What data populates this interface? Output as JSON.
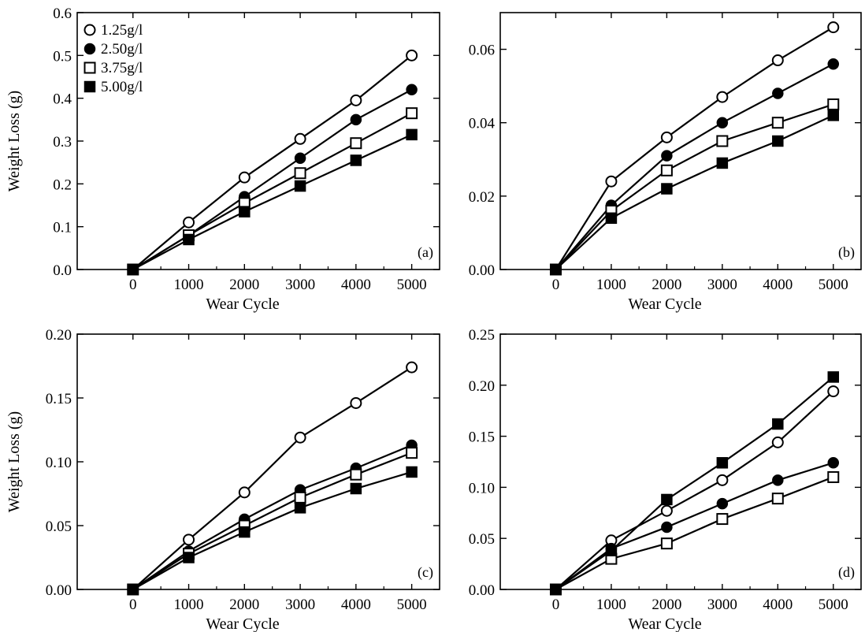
{
  "chart_data": [
    {
      "type": "line",
      "panel_label": "(a)",
      "xlabel": "Wear Cycle",
      "ylabel": "Weight Loss (g)",
      "x": [
        0,
        1000,
        2000,
        3000,
        4000,
        5000
      ],
      "x_ticks": [
        "0",
        "1000",
        "2000",
        "3000",
        "4000",
        "5000"
      ],
      "xlim": [
        -1000,
        5500
      ],
      "ylim": [
        0,
        0.6
      ],
      "y_ticks": [
        "0.0",
        "0.1",
        "0.2",
        "0.3",
        "0.4",
        "0.5",
        "0.6"
      ],
      "grid": false,
      "legend_position": "top-left",
      "series": [
        {
          "name": "1.25g/l",
          "marker": "open-circle",
          "values": [
            0,
            0.11,
            0.215,
            0.305,
            0.395,
            0.5
          ]
        },
        {
          "name": "2.50g/l",
          "marker": "filled-circle",
          "values": [
            0,
            0.08,
            0.17,
            0.26,
            0.35,
            0.42
          ]
        },
        {
          "name": "3.75g/l",
          "marker": "open-square",
          "values": [
            0,
            0.08,
            0.155,
            0.225,
            0.295,
            0.365
          ]
        },
        {
          "name": "5.00g/l",
          "marker": "filled-square",
          "values": [
            0,
            0.07,
            0.135,
            0.195,
            0.255,
            0.315
          ]
        }
      ]
    },
    {
      "type": "line",
      "panel_label": "(b)",
      "xlabel": "Wear Cycle",
      "ylabel": "",
      "x": [
        0,
        1000,
        2000,
        3000,
        4000,
        5000
      ],
      "x_ticks": [
        "0",
        "1000",
        "2000",
        "3000",
        "4000",
        "5000"
      ],
      "xlim": [
        -1000,
        5500
      ],
      "ylim": [
        0,
        0.07
      ],
      "y_ticks": [
        "0.00",
        "0.02",
        "0.04",
        "0.06"
      ],
      "grid": false,
      "series": [
        {
          "name": "1.25g/l",
          "marker": "open-circle",
          "values": [
            0,
            0.024,
            0.036,
            0.047,
            0.057,
            0.066
          ]
        },
        {
          "name": "2.50g/l",
          "marker": "filled-circle",
          "values": [
            0,
            0.0175,
            0.031,
            0.04,
            0.048,
            0.056
          ]
        },
        {
          "name": "3.75g/l",
          "marker": "open-square",
          "values": [
            0,
            0.016,
            0.027,
            0.035,
            0.04,
            0.045
          ]
        },
        {
          "name": "5.00g/l",
          "marker": "filled-square",
          "values": [
            0,
            0.014,
            0.022,
            0.029,
            0.035,
            0.042
          ]
        }
      ]
    },
    {
      "type": "line",
      "panel_label": "(c)",
      "xlabel": "Wear Cycle",
      "ylabel": "Weight Loss (g)",
      "x": [
        0,
        1000,
        2000,
        3000,
        4000,
        5000
      ],
      "x_ticks": [
        "0",
        "1000",
        "2000",
        "3000",
        "4000",
        "5000"
      ],
      "xlim": [
        -1000,
        5500
      ],
      "ylim": [
        0,
        0.2
      ],
      "y_ticks": [
        "0.00",
        "0.05",
        "0.10",
        "0.15",
        "0.20"
      ],
      "grid": false,
      "series": [
        {
          "name": "1.25g/l",
          "marker": "open-circle",
          "values": [
            0,
            0.039,
            0.076,
            0.119,
            0.146,
            0.174
          ]
        },
        {
          "name": "2.50g/l",
          "marker": "filled-circle",
          "values": [
            0,
            0.03,
            0.055,
            0.078,
            0.095,
            0.113
          ]
        },
        {
          "name": "3.75g/l",
          "marker": "open-square",
          "values": [
            0,
            0.028,
            0.05,
            0.072,
            0.09,
            0.107
          ]
        },
        {
          "name": "5.00g/l",
          "marker": "filled-square",
          "values": [
            0,
            0.025,
            0.045,
            0.064,
            0.079,
            0.092
          ]
        }
      ]
    },
    {
      "type": "line",
      "panel_label": "(d)",
      "xlabel": "Wear  Cycle",
      "ylabel": "",
      "x": [
        0,
        1000,
        2000,
        3000,
        4000,
        5000
      ],
      "x_ticks": [
        "0",
        "1000",
        "2000",
        "3000",
        "4000",
        "5000"
      ],
      "xlim": [
        -1000,
        5500
      ],
      "ylim": [
        0,
        0.25
      ],
      "y_ticks": [
        "0.00",
        "0.05",
        "0.10",
        "0.15",
        "0.20",
        "0.25"
      ],
      "grid": false,
      "series": [
        {
          "name": "1.25g/l",
          "marker": "open-circle",
          "values": [
            0,
            0.048,
            0.077,
            0.107,
            0.144,
            0.194
          ]
        },
        {
          "name": "2.50g/l",
          "marker": "filled-circle",
          "values": [
            0,
            0.04,
            0.061,
            0.084,
            0.107,
            0.124
          ]
        },
        {
          "name": "3.75g/l",
          "marker": "open-square",
          "values": [
            0,
            0.03,
            0.045,
            0.069,
            0.089,
            0.11
          ]
        },
        {
          "name": "5.00g/l",
          "marker": "filled-square",
          "values": [
            0,
            0.038,
            0.088,
            0.124,
            0.162,
            0.208
          ]
        }
      ]
    }
  ]
}
